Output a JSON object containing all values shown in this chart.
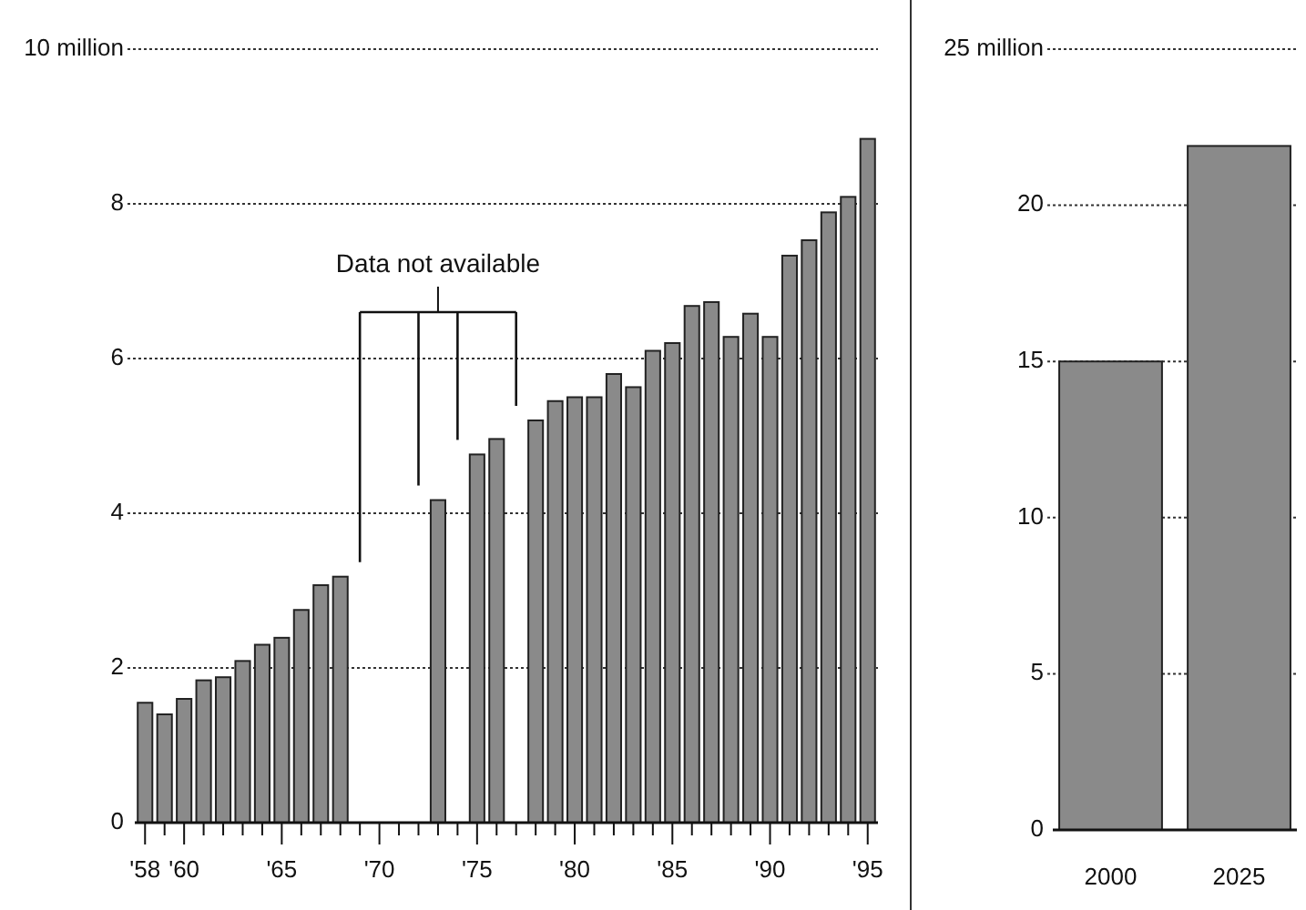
{
  "chart_data": [
    {
      "type": "bar",
      "categories": [
        "'58",
        null,
        "'60",
        null,
        null,
        null,
        null,
        "'65",
        null,
        null,
        null,
        null,
        "'70",
        null,
        null,
        null,
        null,
        "'75",
        null,
        null,
        null,
        null,
        "'80",
        null,
        null,
        null,
        null,
        "'85",
        null,
        null,
        null,
        null,
        "'90",
        null,
        null,
        null,
        null,
        "'95"
      ],
      "values": [
        1.55,
        1.4,
        1.6,
        1.84,
        1.88,
        2.09,
        2.3,
        2.39,
        2.75,
        3.07,
        3.18,
        null,
        null,
        null,
        null,
        4.17,
        null,
        4.76,
        4.96,
        null,
        5.2,
        5.45,
        5.5,
        5.5,
        5.8,
        5.63,
        6.1,
        6.2,
        6.68,
        6.73,
        6.28,
        6.58,
        6.28,
        7.33,
        7.53,
        7.89,
        8.09,
        8.84
      ],
      "color": "#8a8a8a",
      "ylim": [
        0,
        10
      ],
      "yticks": [
        0,
        2,
        4,
        6,
        8,
        {
          "value": 10,
          "label": "10 million"
        }
      ],
      "grid": "y",
      "annotations": [
        "Data not available"
      ]
    },
    {
      "type": "bar",
      "categories": [
        "2000",
        "2025"
      ],
      "values": [
        15.0,
        21.9
      ],
      "color": "#8a8a8a",
      "ylim": [
        0,
        25
      ],
      "yticks": [
        0,
        5,
        10,
        15,
        20,
        {
          "value": 25,
          "label": "25 million"
        }
      ],
      "grid": "y"
    }
  ]
}
